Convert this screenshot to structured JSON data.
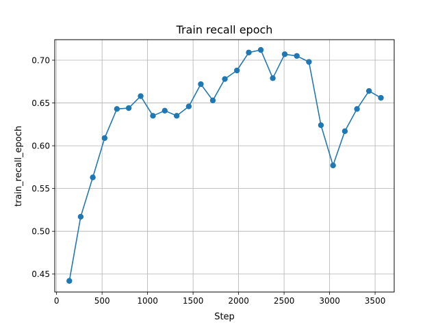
{
  "chart_data": {
    "type": "line",
    "title": "Train recall epoch",
    "xlabel": "Step",
    "ylabel": "train_recall_epoch",
    "xlim": [
      -20,
      3710
    ],
    "ylim": [
      0.429,
      0.724
    ],
    "xticks": [
      0,
      500,
      1000,
      1500,
      2000,
      2500,
      3000,
      3500
    ],
    "yticks": [
      0.45,
      0.5,
      0.55,
      0.6,
      0.65,
      0.7
    ],
    "xtick_labels": [
      "0",
      "500",
      "1000",
      "1500",
      "2000",
      "2500",
      "3000",
      "3500"
    ],
    "ytick_labels": [
      "0.45",
      "0.50",
      "0.55",
      "0.60",
      "0.65",
      "0.70"
    ],
    "grid": true,
    "colors": {
      "line": "#1f77b4",
      "grid": "#b0b0b0"
    },
    "series": [
      {
        "x": [
          140,
          265,
          398,
          528,
          663,
          793,
          924,
          1059,
          1189,
          1320,
          1453,
          1585,
          1717,
          1849,
          1982,
          2112,
          2244,
          2376,
          2507,
          2640,
          2773,
          2905,
          3038,
          3168,
          3301,
          3433,
          3564
        ],
        "y": [
          0.442,
          0.517,
          0.563,
          0.609,
          0.643,
          0.644,
          0.658,
          0.635,
          0.641,
          0.635,
          0.646,
          0.672,
          0.653,
          0.678,
          0.688,
          0.709,
          0.712,
          0.679,
          0.707,
          0.705,
          0.698,
          0.624,
          0.577,
          0.617,
          0.643,
          0.664,
          0.656
        ]
      }
    ]
  }
}
